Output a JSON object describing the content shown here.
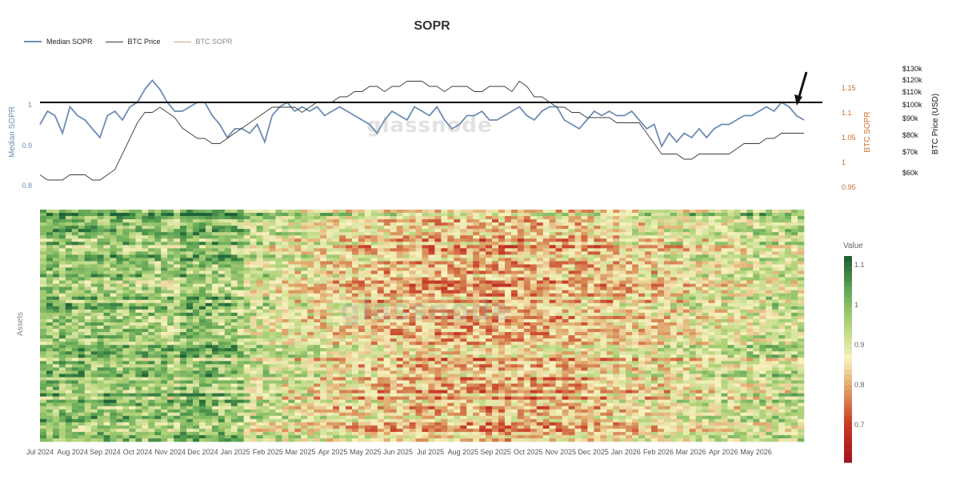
{
  "chart_data": {
    "title": "SOPR",
    "legend": [
      {
        "name": "Median SOPR",
        "color": "#6e8cb4"
      },
      {
        "name": "BTC Price",
        "color": "#3a3a3a"
      },
      {
        "name": "BTC SOPR",
        "color": "#c9a48a"
      }
    ],
    "x_ticks": [
      "Jul 2024",
      "Aug 2024",
      "Sep 2024",
      "Oct 2024",
      "Nov 2024",
      "Dec 2024",
      "Jan 2025",
      "Feb 2025",
      "Mar 2025",
      "Apr 2025",
      "May 2025",
      "Jun 2025",
      "Jul 2025",
      "Aug 2025",
      "Sep 2025",
      "Oct 2025",
      "Nov 2025",
      "Dec 2025",
      "Jan 2026",
      "Feb 2026",
      "Mar 2026",
      "Apr 2026",
      "May 2026"
    ],
    "top": {
      "type": "line",
      "left_axis": {
        "label": "Median SOPR",
        "ticks": [
          "1",
          "0.9",
          "0.8"
        ],
        "ylim": [
          0.8,
          1.06
        ],
        "color": "#6e8cb4"
      },
      "right_axis_1": {
        "label": "BTC SOPR",
        "ticks": [
          "1.15",
          "1.1",
          "1.05",
          "1",
          "0.95"
        ],
        "ylim": [
          0.95,
          1.17
        ],
        "color": "#c86f2f"
      },
      "right_axis_2": {
        "label": "BTC Price (USD)",
        "ticks": [
          "$130k",
          "$120k",
          "$110k",
          "$100k",
          "$90k",
          "$80k",
          "$70k",
          "$60k"
        ],
        "color": "#111111"
      },
      "reference_line": {
        "y": 1,
        "color": "#000000"
      },
      "series": [
        {
          "name": "Median SOPR",
          "color": "#6e8cb4",
          "values": [
            0.95,
            0.98,
            0.97,
            0.93,
            0.99,
            0.97,
            0.96,
            0.94,
            0.92,
            0.97,
            0.98,
            0.96,
            0.99,
            1.0,
            1.03,
            1.05,
            1.03,
            1.0,
            0.98,
            0.98,
            0.99,
            1.0,
            1.0,
            0.97,
            0.95,
            0.92,
            0.94,
            0.94,
            0.93,
            0.95,
            0.91,
            0.97,
            0.99,
            1.0,
            0.98,
            0.99,
            0.98,
            0.99,
            0.97,
            0.98,
            0.99,
            0.98,
            0.97,
            0.96,
            0.95,
            0.93,
            0.96,
            0.98,
            0.97,
            0.96,
            0.99,
            0.98,
            0.97,
            0.99,
            0.96,
            0.94,
            0.95,
            0.97,
            0.97,
            0.98,
            0.96,
            0.96,
            0.97,
            0.98,
            0.99,
            0.97,
            0.96,
            0.98,
            0.99,
            0.99,
            0.96,
            0.95,
            0.94,
            0.96,
            0.98,
            0.97,
            0.98,
            0.97,
            0.97,
            0.98,
            0.96,
            0.94,
            0.95,
            0.9,
            0.93,
            0.91,
            0.93,
            0.92,
            0.94,
            0.92,
            0.94,
            0.95,
            0.95,
            0.96,
            0.97,
            0.97,
            0.98,
            0.99,
            0.98,
            1.0,
            0.99,
            0.97,
            0.96
          ]
        },
        {
          "name": "BTC SOPR",
          "color": "#3a3a3a",
          "values": [
            0.98,
            0.97,
            0.97,
            0.97,
            0.98,
            0.98,
            0.98,
            0.97,
            0.97,
            0.98,
            0.99,
            1.02,
            1.05,
            1.08,
            1.1,
            1.1,
            1.11,
            1.1,
            1.09,
            1.07,
            1.06,
            1.05,
            1.05,
            1.04,
            1.04,
            1.05,
            1.06,
            1.07,
            1.08,
            1.09,
            1.1,
            1.11,
            1.11,
            1.11,
            1.11,
            1.1,
            1.11,
            1.12,
            1.12,
            1.12,
            1.13,
            1.13,
            1.14,
            1.14,
            1.15,
            1.15,
            1.14,
            1.15,
            1.15,
            1.16,
            1.16,
            1.16,
            1.15,
            1.15,
            1.14,
            1.15,
            1.15,
            1.15,
            1.14,
            1.14,
            1.15,
            1.15,
            1.15,
            1.14,
            1.16,
            1.15,
            1.13,
            1.13,
            1.12,
            1.11,
            1.11,
            1.1,
            1.1,
            1.09,
            1.09,
            1.09,
            1.09,
            1.08,
            1.08,
            1.08,
            1.08,
            1.06,
            1.04,
            1.02,
            1.02,
            1.02,
            1.01,
            1.01,
            1.02,
            1.02,
            1.02,
            1.02,
            1.02,
            1.03,
            1.04,
            1.04,
            1.04,
            1.05,
            1.05,
            1.06,
            1.06,
            1.06,
            1.06
          ]
        }
      ]
    },
    "heatmap": {
      "type": "heatmap",
      "ylabel": "Assets",
      "colorbar": {
        "title": "Value",
        "ticks": [
          "1.1",
          "1",
          "0.9",
          "0.8",
          "0.7"
        ],
        "range": [
          0.6,
          1.15
        ]
      }
    },
    "watermark": "glassnode"
  }
}
